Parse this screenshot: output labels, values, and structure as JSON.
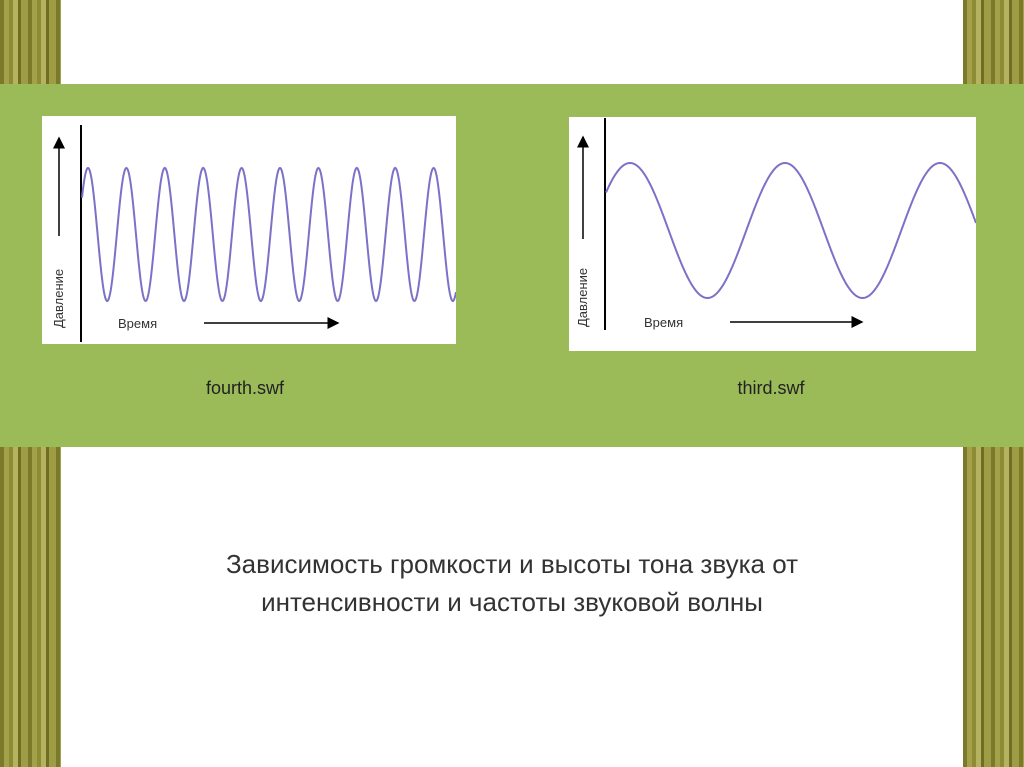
{
  "slide": {
    "left_diagram": {
      "y_axis_label": "Давление",
      "x_axis_label": "Время",
      "caption": "fourth.swf"
    },
    "right_diagram": {
      "y_axis_label": "Давление",
      "x_axis_label": "Время",
      "caption": "third.swf"
    },
    "title_line1": "Зависимость громкости и высоты тона звука от",
    "title_line2": "интенсивности и частоты звуковой волны",
    "colors": {
      "band": "#9bbb59",
      "wave": "#7b72c8"
    }
  }
}
